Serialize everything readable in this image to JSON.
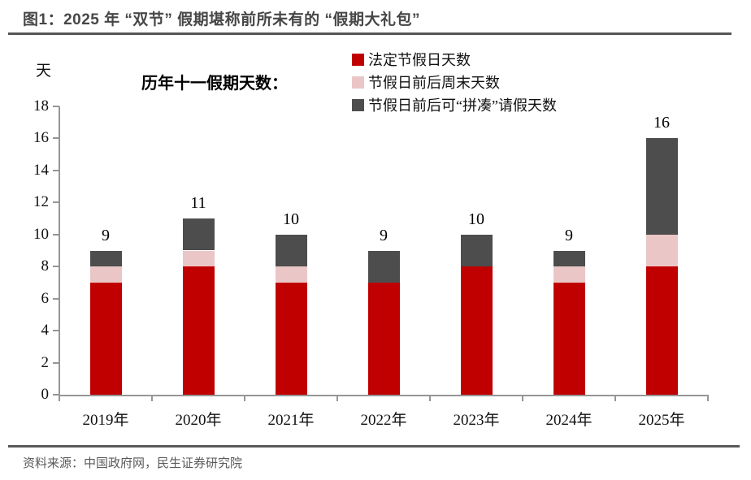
{
  "header": {
    "title": "图1：2025 年 “双节” 假期堪称前所未有的 “假期大礼包”"
  },
  "footer": {
    "source": "资料来源：中国政府网，民生证券研究院"
  },
  "chart_data": {
    "type": "bar",
    "stacked": true,
    "title": "历年十一假期天数：",
    "unit_label": "天",
    "categories": [
      "2019年",
      "2020年",
      "2021年",
      "2022年",
      "2023年",
      "2024年",
      "2025年"
    ],
    "series": [
      {
        "name": "法定节假日天数",
        "color": "#C00000",
        "values": [
          7,
          8,
          7,
          7,
          8,
          7,
          8
        ]
      },
      {
        "name": "节假日前后周末天数",
        "color": "#EBC6C6",
        "values": [
          1,
          1,
          1,
          0,
          0,
          1,
          2
        ]
      },
      {
        "name": "节假日前后可“拼凑”请假天数",
        "color": "#4D4D4D",
        "values": [
          1,
          2,
          2,
          2,
          2,
          1,
          6
        ]
      }
    ],
    "totals": [
      9,
      11,
      10,
      9,
      10,
      9,
      16
    ],
    "ylim": [
      0,
      18
    ],
    "ytick_step": 2,
    "grid": false,
    "legend_position": "top-center",
    "axis_color": "#969696"
  }
}
